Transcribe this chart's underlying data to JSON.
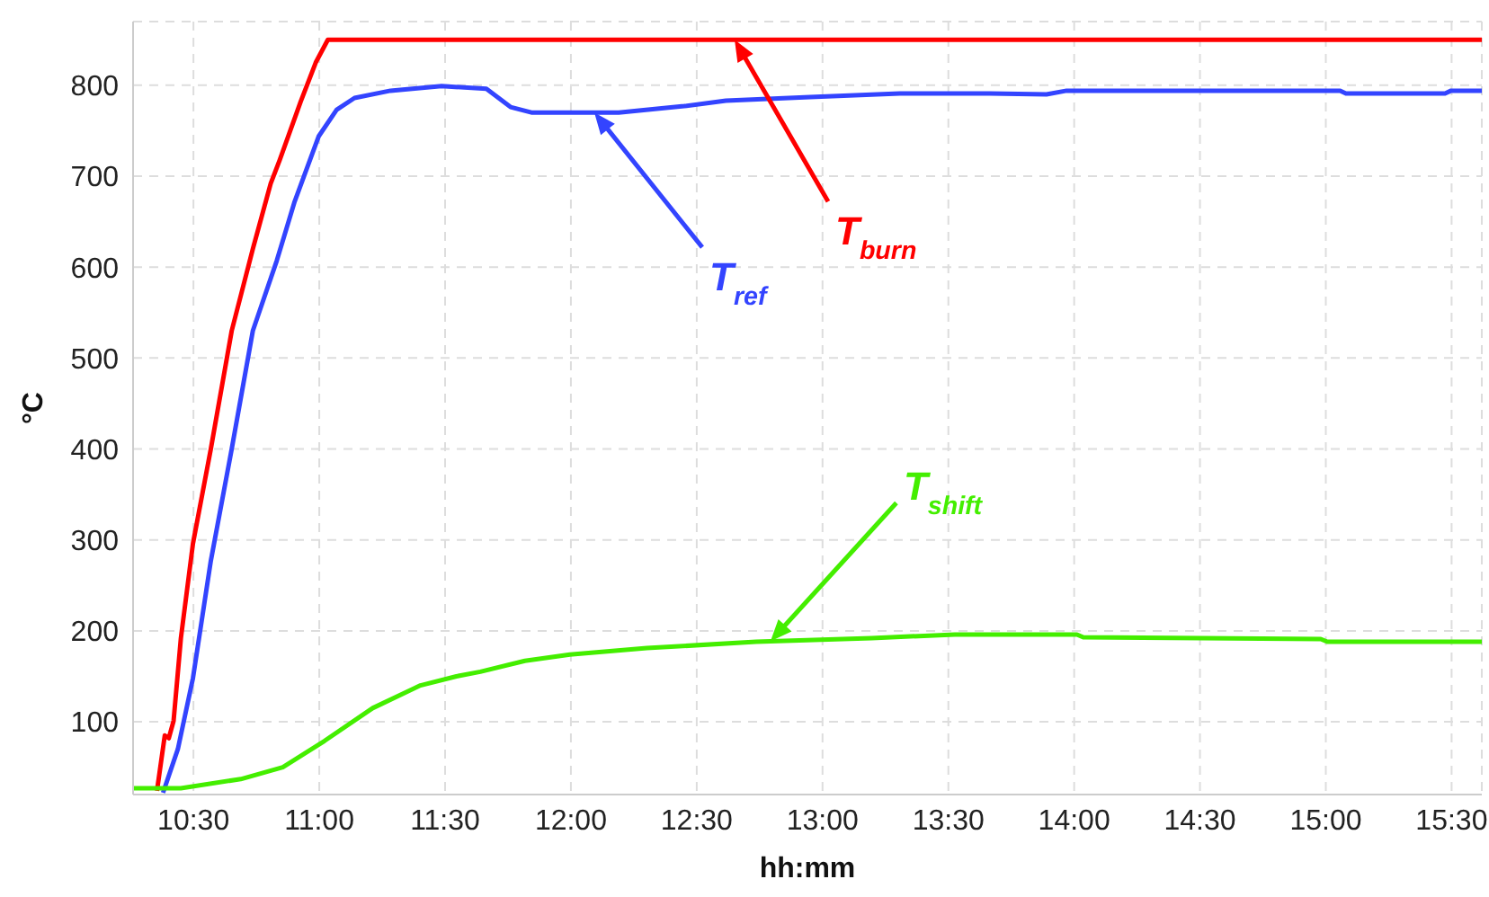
{
  "chart_data": {
    "type": "line",
    "xlabel": "hh:mm",
    "ylabel": "°C",
    "xlim": [
      10.26,
      15.62
    ],
    "ylim": [
      20,
      870
    ],
    "xticks": [
      {
        "value": 10.5,
        "label": "10:30"
      },
      {
        "value": 11,
        "label": "11:00"
      },
      {
        "value": 11.5,
        "label": "11:30"
      },
      {
        "value": 12,
        "label": "12:00"
      },
      {
        "value": 12.5,
        "label": "12:30"
      },
      {
        "value": 13,
        "label": "13:00"
      },
      {
        "value": 13.5,
        "label": "13:30"
      },
      {
        "value": 14,
        "label": "14:00"
      },
      {
        "value": 14.5,
        "label": "14:30"
      },
      {
        "value": 15,
        "label": "15:00"
      },
      {
        "value": 15.5,
        "label": "15:30"
      }
    ],
    "yticks": [
      100,
      200,
      300,
      400,
      500,
      600,
      700,
      800
    ],
    "grid": true,
    "marker": "none",
    "line_style": "solid",
    "series": [
      {
        "name": "T$_{burn}$",
        "color": "#ff0000",
        "x": [
          10.355,
          10.386,
          10.402,
          10.421,
          10.45,
          10.498,
          10.569,
          10.652,
          10.736,
          10.807,
          10.843,
          10.926,
          10.986,
          11.034,
          11.5,
          12,
          12.5,
          13,
          13.5,
          14,
          14.5,
          15,
          15.62
        ],
        "values": [
          24,
          85,
          82,
          101,
          192,
          296,
          400,
          530,
          620,
          692,
          718,
          782,
          825,
          850,
          850,
          850,
          850,
          850,
          850,
          850,
          850,
          850,
          850
        ]
      },
      {
        "name": "T$_{ref}$",
        "color": "#3344ff",
        "x": [
          10.379,
          10.438,
          10.498,
          10.569,
          10.652,
          10.736,
          10.831,
          10.902,
          10.998,
          11.069,
          11.14,
          11.283,
          11.486,
          11.664,
          11.76,
          11.843,
          12.19,
          12.45,
          12.616,
          12.95,
          13.307,
          13.664,
          13.89,
          13.97,
          14.116,
          15.057,
          15.08,
          15.474,
          15.498,
          15.62
        ],
        "values": [
          22,
          70,
          148,
          277,
          400,
          530,
          607,
          672,
          744,
          773,
          786,
          794,
          799,
          796,
          776,
          770,
          770,
          777,
          783,
          787,
          791,
          791,
          790,
          794,
          794,
          794,
          791,
          791,
          794,
          794
        ]
      },
      {
        "name": "T$_{shift}$",
        "color": "#44ee00",
        "x": [
          10.26,
          10.45,
          10.688,
          10.855,
          11.021,
          11.212,
          11.402,
          11.545,
          11.64,
          11.817,
          11.996,
          12.302,
          12.736,
          13.195,
          13.526,
          14.011,
          14.036,
          14.98,
          15.006,
          15.62
        ],
        "values": [
          27,
          27,
          37,
          50,
          79,
          115,
          140,
          150,
          155,
          167,
          174,
          181,
          188,
          192,
          196,
          196,
          193,
          191,
          188,
          188
        ]
      }
    ]
  }
}
